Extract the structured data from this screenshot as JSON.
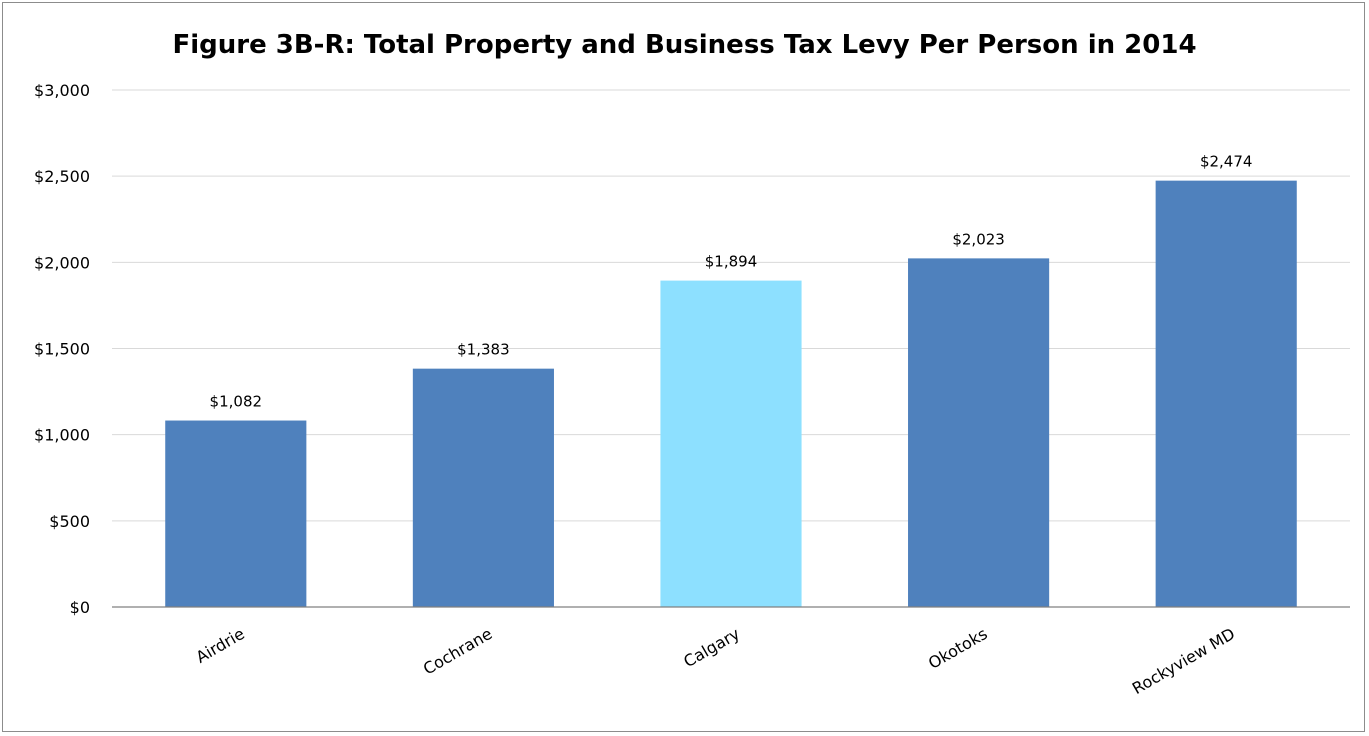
{
  "chart_data": {
    "type": "bar",
    "title": "Figure 3B-R: Total Property and Business Tax Levy Per Person in 2014",
    "xlabel": "",
    "ylabel": "",
    "categories": [
      "Airdrie",
      "Cochrane",
      "Calgary",
      "Okotoks",
      "Rockyview MD"
    ],
    "values": [
      1082,
      1383,
      1894,
      2023,
      2474
    ],
    "data_labels": [
      "$1,082",
      "$1,383",
      "$1,894",
      "$2,023",
      "$2,474"
    ],
    "highlight_category": "Calgary",
    "ylim": [
      0,
      3000
    ],
    "yticks": [
      0,
      500,
      1000,
      1500,
      2000,
      2500,
      3000
    ],
    "ytick_labels": [
      "$0",
      "$500",
      "$1,000",
      "$1,500",
      "$2,000",
      "$2,500",
      "$3,000"
    ],
    "grid": true,
    "legend": "none",
    "colors": {
      "bar": "#4f81bd",
      "highlight": "#8de0ff",
      "grid": "#d9d9d9",
      "axis": "#808080"
    }
  }
}
